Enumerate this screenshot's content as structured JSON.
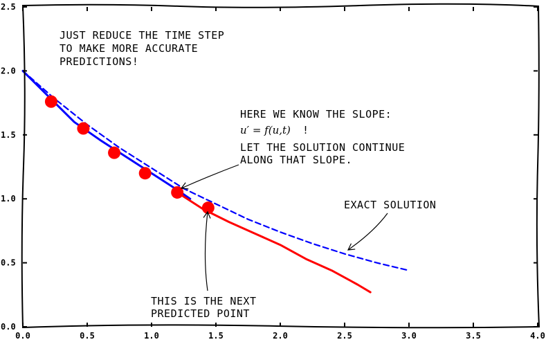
{
  "chart_data": {
    "type": "line",
    "title": "",
    "xlabel": "",
    "ylabel": "",
    "xlim": [
      0.0,
      4.0
    ],
    "ylim": [
      0.0,
      2.5
    ],
    "grid": false,
    "xticks": [
      "0.0",
      "0.5",
      "1.0",
      "1.5",
      "2.0",
      "2.5",
      "3.0",
      "3.5",
      "4.0"
    ],
    "yticks": [
      "0.0",
      "0.5",
      "1.0",
      "1.5",
      "2.0",
      "2.5"
    ],
    "series": [
      {
        "style": "solid",
        "color": "#0000ff",
        "x": [
          0.0,
          0.2,
          0.4,
          0.6,
          0.8,
          1.0,
          1.2,
          1.3
        ],
        "y": [
          2.0,
          1.8,
          1.6,
          1.46,
          1.33,
          1.2,
          1.07,
          1.0
        ]
      },
      {
        "style": "solid",
        "color": "#ff0000",
        "x": [
          1.2,
          1.4,
          1.6,
          1.8,
          2.0,
          2.2,
          2.4,
          2.6,
          2.7
        ],
        "y": [
          1.05,
          0.92,
          0.82,
          0.73,
          0.64,
          0.53,
          0.44,
          0.33,
          0.27
        ]
      },
      {
        "style": "dashed",
        "color": "#0000ff",
        "x": [
          0.0,
          0.25,
          0.5,
          0.75,
          1.0,
          1.25,
          1.5,
          1.75,
          2.0,
          2.25,
          2.5,
          2.75,
          3.0
        ],
        "y": [
          2.0,
          1.78,
          1.58,
          1.4,
          1.24,
          1.08,
          0.96,
          0.84,
          0.74,
          0.65,
          0.57,
          0.5,
          0.44
        ]
      }
    ],
    "points": {
      "color": "#ff0000",
      "x": [
        0.22,
        0.47,
        0.71,
        0.95,
        1.2,
        1.44
      ],
      "y": [
        1.76,
        1.55,
        1.36,
        1.2,
        1.05,
        0.93
      ]
    },
    "annotations": {
      "time_step": [
        "JUST REDUCE THE TIME STEP",
        "TO MAKE MORE ACCURATE",
        "PREDICTIONS!"
      ],
      "slope_line1": "HERE WE KNOW THE SLOPE:",
      "slope_math": "u′ = f(u,t)",
      "slope_bang": "!",
      "slope_line3": "LET THE SOLUTION CONTINUE",
      "slope_line4": "ALONG THAT SLOPE.",
      "exact": "EXACT SOLUTION",
      "next_point": [
        "THIS IS THE NEXT",
        "PREDICTED POINT"
      ]
    }
  }
}
